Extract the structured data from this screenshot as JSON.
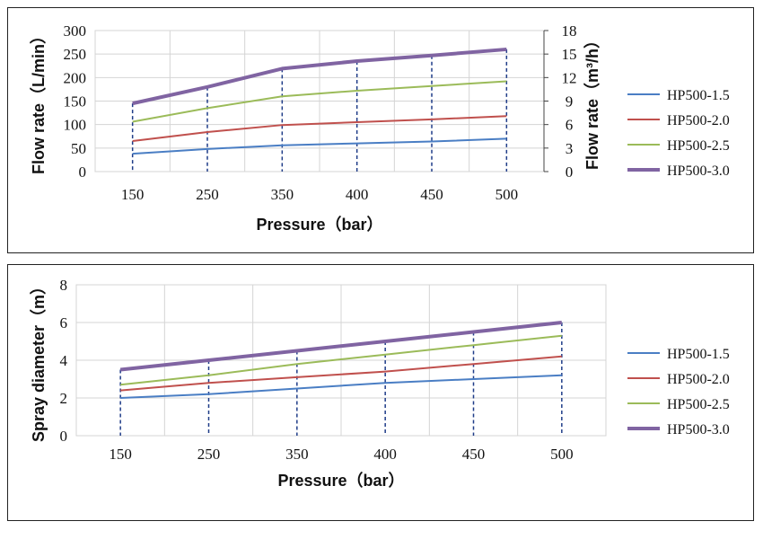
{
  "chart_data": [
    {
      "type": "line",
      "categories": [
        "150",
        "250",
        "350",
        "400",
        "450",
        "500"
      ],
      "xlabel": "Pressure（bar）",
      "ylabel": "Flow rate（L/min）",
      "ylabel_right": "Flow rate（m³/h）",
      "ylim": [
        0,
        300
      ],
      "yticks": [
        "0",
        "50",
        "100",
        "150",
        "200",
        "250",
        "300"
      ],
      "ylim_right": [
        0,
        18
      ],
      "yticks_right": [
        "0",
        "3",
        "6",
        "9",
        "12",
        "15",
        "18"
      ],
      "grid": true,
      "legend_position": "right",
      "series": [
        {
          "name": "HP500-1.5",
          "color": "#4a7ec4",
          "values": [
            38,
            48,
            56,
            60,
            64,
            70
          ]
        },
        {
          "name": "HP500-2.0",
          "color": "#c0504d",
          "values": [
            65,
            84,
            99,
            105,
            111,
            118
          ]
        },
        {
          "name": "HP500-2.5",
          "color": "#9bbb59",
          "values": [
            106,
            135,
            160,
            172,
            182,
            192
          ]
        },
        {
          "name": "HP500-3.0",
          "color": "#8064a2",
          "values": [
            145,
            180,
            219,
            235,
            247,
            260
          ]
        }
      ]
    },
    {
      "type": "line",
      "categories": [
        "150",
        "250",
        "350",
        "400",
        "450",
        "500"
      ],
      "xlabel": "Pressure（bar）",
      "ylabel": "Spray diameter（m）",
      "ylim": [
        0,
        8
      ],
      "yticks": [
        "0",
        "2",
        "4",
        "6",
        "8"
      ],
      "grid": true,
      "legend_position": "right",
      "series": [
        {
          "name": "HP500-1.5",
          "color": "#4a7ec4",
          "values": [
            2.0,
            2.2,
            2.5,
            2.8,
            3.0,
            3.2
          ]
        },
        {
          "name": "HP500-2.0",
          "color": "#c0504d",
          "values": [
            2.4,
            2.8,
            3.1,
            3.4,
            3.8,
            4.2
          ]
        },
        {
          "name": "HP500-2.5",
          "color": "#9bbb59",
          "values": [
            2.7,
            3.2,
            3.8,
            4.3,
            4.8,
            5.3
          ]
        },
        {
          "name": "HP500-3.0",
          "color": "#8064a2",
          "values": [
            3.5,
            4.0,
            4.5,
            5.0,
            5.5,
            6.0
          ]
        }
      ]
    }
  ]
}
